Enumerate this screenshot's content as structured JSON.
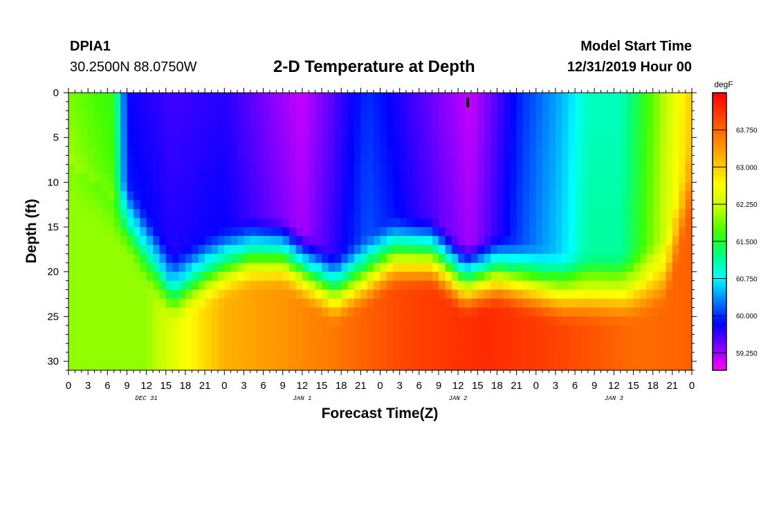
{
  "header": {
    "station_id": "DPIA1",
    "coordinates": "30.2500N 88.0750W",
    "title": "2-D Temperature at Depth",
    "model_start_label": "Model Start Time",
    "model_start_value": "12/31/2019 Hour 00"
  },
  "chart_data": {
    "type": "heatmap",
    "title": "2-D Temperature at Depth",
    "xlabel": "Forecast Time(Z)",
    "ylabel": "Depth (ft)",
    "x_range_hours": [
      0,
      96
    ],
    "y_range_ft": [
      0,
      31
    ],
    "x_tick_labels": [
      "0",
      "3",
      "6",
      "9",
      "12",
      "15",
      "18",
      "21",
      "0",
      "3",
      "6",
      "9",
      "12",
      "15",
      "18",
      "21",
      "0",
      "3",
      "6",
      "9",
      "12",
      "15",
      "18",
      "21",
      "0",
      "3",
      "6",
      "9",
      "12",
      "15",
      "18",
      "21",
      "0"
    ],
    "y_ticks": [
      0,
      5,
      10,
      15,
      20,
      25,
      30
    ],
    "y_tick_labels": [
      "0",
      "5",
      "10",
      "15",
      "20",
      "25",
      "30"
    ],
    "date_labels": [
      {
        "text": "DEC 31",
        "hour": 12
      },
      {
        "text": "JAN 1",
        "hour": 36
      },
      {
        "text": "JAN 2",
        "hour": 60
      },
      {
        "text": "JAN 3",
        "hour": 84
      }
    ],
    "colorbar": {
      "unit": "degF",
      "range": [
        58.9,
        64.5
      ],
      "tick_values": [
        59.25,
        60.0,
        60.75,
        61.5,
        62.25,
        63.0,
        63.75
      ],
      "tick_labels": [
        "59.250",
        "60.000",
        "60.750",
        "61.500",
        "62.250",
        "63.000",
        "63.750"
      ],
      "colors": [
        "#ff00ff",
        "#8000ff",
        "#0000ff",
        "#0080ff",
        "#00ffff",
        "#00ff80",
        "#40ff00",
        "#c0ff00",
        "#ffff00",
        "#ffc000",
        "#ff8000",
        "#ff4000",
        "#ff0000"
      ]
    },
    "thermocline_depth_ft": [
      {
        "hour": 0,
        "depth": 8
      },
      {
        "hour": 9,
        "depth": 13
      },
      {
        "hour": 16,
        "depth": 21
      },
      {
        "hour": 21,
        "depth": 19
      },
      {
        "hour": 28,
        "depth": 17
      },
      {
        "hour": 33,
        "depth": 17
      },
      {
        "hour": 37,
        "depth": 19
      },
      {
        "hour": 41,
        "depth": 21
      },
      {
        "hour": 46,
        "depth": 19
      },
      {
        "hour": 50,
        "depth": 17
      },
      {
        "hour": 56,
        "depth": 17
      },
      {
        "hour": 61,
        "depth": 20
      },
      {
        "hour": 66,
        "depth": 19
      },
      {
        "hour": 71,
        "depth": 20
      },
      {
        "hour": 76,
        "depth": 21
      },
      {
        "hour": 86,
        "depth": 21
      },
      {
        "hour": 92,
        "depth": 19
      },
      {
        "hour": 96,
        "depth": 8
      }
    ],
    "surface_temperature_degF": [
      {
        "hour": 0,
        "value": 61.9
      },
      {
        "hour": 7,
        "value": 61.6
      },
      {
        "hour": 9,
        "value": 59.8
      },
      {
        "hour": 16,
        "value": 59.6
      },
      {
        "hour": 24,
        "value": 59.7
      },
      {
        "hour": 36,
        "value": 59.1
      },
      {
        "hour": 46,
        "value": 60.0
      },
      {
        "hour": 53,
        "value": 59.6
      },
      {
        "hour": 62,
        "value": 59.1
      },
      {
        "hour": 70,
        "value": 60.0
      },
      {
        "hour": 76,
        "value": 60.5
      },
      {
        "hour": 80,
        "value": 61.0
      },
      {
        "hour": 85,
        "value": 61.0
      },
      {
        "hour": 90,
        "value": 61.8
      },
      {
        "hour": 94,
        "value": 62.6
      },
      {
        "hour": 96,
        "value": 63.0
      }
    ],
    "bottom_temperature_degF": [
      {
        "hour": 0,
        "value": 62.0
      },
      {
        "hour": 12,
        "value": 62.0
      },
      {
        "hour": 16,
        "value": 62.4
      },
      {
        "hour": 24,
        "value": 63.2
      },
      {
        "hour": 32,
        "value": 63.4
      },
      {
        "hour": 40,
        "value": 63.6
      },
      {
        "hour": 52,
        "value": 64.0
      },
      {
        "hour": 64,
        "value": 64.2
      },
      {
        "hour": 76,
        "value": 64.0
      },
      {
        "hour": 88,
        "value": 63.7
      },
      {
        "hour": 96,
        "value": 63.8
      }
    ],
    "marker": {
      "hour": 61.5,
      "depth": 1
    }
  }
}
